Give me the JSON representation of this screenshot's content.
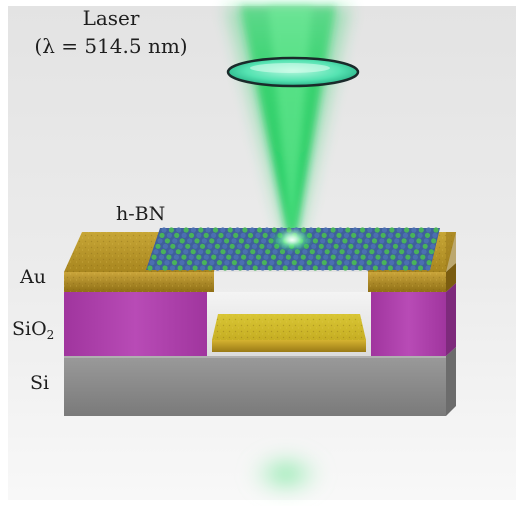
{
  "labels": {
    "laser": "Laser",
    "wavelength": "(λ = 514.5 nm)",
    "hbn": "h-BN",
    "au": "Au",
    "sio2_main": "SiO",
    "sio2_sub": "2",
    "si": "Si"
  },
  "colors": {
    "background_top": "#e6e6e6",
    "background_bottom": "#f7f7f7",
    "laser_green": "#1fd060",
    "lens_fill": "#55e3b2",
    "gold": "#b9962a",
    "sio2_magenta": "#b23fb0",
    "si_gray": "#8b8b8b",
    "hbn_blue": "#4b6fb1",
    "hbn_green": "#49b35a"
  }
}
